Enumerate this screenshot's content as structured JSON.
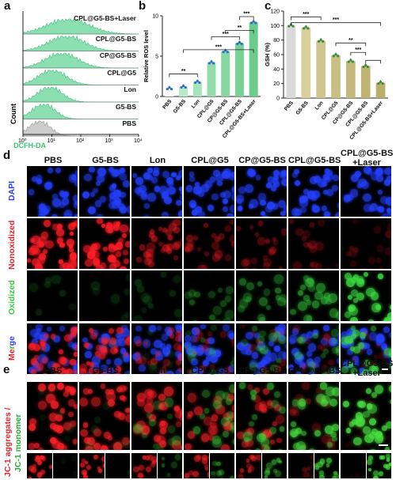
{
  "panels": {
    "a": "a",
    "b": "b",
    "c": "c",
    "d": "d",
    "e": "e"
  },
  "panel_a": {
    "xlabel": "DCFH-DA",
    "ylabel": "Count",
    "xticks": [
      "10⁰",
      "10¹",
      "10²",
      "10³",
      "10⁴"
    ],
    "groups": [
      "CPL@G5-BS+Laser",
      "CPL@G5-BS",
      "CP@G5-BS",
      "CPL@G5",
      "Lon",
      "G5-BS",
      "PBS"
    ]
  },
  "chart_data": [
    {
      "type": "bar",
      "title": "",
      "ylabel": "Relative ROS level",
      "xlabel": "",
      "categories": [
        "PBS",
        "G5-BS",
        "Lon",
        "CPL@G5",
        "CP@G5-BS",
        "CPL@G5-BS",
        "CPL@G5-BS+Laser"
      ],
      "values": [
        1.0,
        1.2,
        1.8,
        4.2,
        5.6,
        6.6,
        9.2
      ],
      "ylim": [
        0,
        10
      ],
      "yticks": [
        0,
        5,
        10
      ],
      "significance": [
        "**",
        "***",
        "***",
        "**",
        "***"
      ]
    },
    {
      "type": "bar",
      "title": "",
      "ylabel": "GSH (%)",
      "xlabel": "",
      "categories": [
        "PBS",
        "G5-BS",
        "Lon",
        "CPL@G5",
        "CP@G5-BS",
        "CPL@G5-BS",
        "CPL@G5-BS+Laser"
      ],
      "values": [
        100,
        97,
        79,
        59,
        51,
        44,
        21
      ],
      "ylim": [
        0,
        120
      ],
      "yticks": [
        0,
        20,
        40,
        60,
        80,
        100,
        120
      ],
      "significance": [
        "***",
        "***",
        "**",
        "***"
      ]
    }
  ],
  "panel_d": {
    "columns": [
      "PBS",
      "G5-BS",
      "Lon",
      "CPL@G5",
      "CP@G5-BS",
      "CPL@G5-BS",
      "CPL@G5-BS\n+Laser"
    ],
    "rows": [
      "DAPI",
      "Nonoxidized",
      "Oxidized",
      "Merge"
    ]
  },
  "panel_e": {
    "columns": [
      "PBS",
      "G5-BS",
      "Lon",
      "CPL@G5",
      "CP@G5-BS",
      "CPL@G5-BS",
      "CPL@G5-BS\n+Laser"
    ],
    "row_label_red": "JC-1 aggregates /",
    "row_label_green": "JC-1 monomer"
  },
  "colors": {
    "hist_fill": "#7fdca8",
    "hist_gray": "#c8c8c8",
    "bar_b": "#8fdaa8",
    "bar_c": "#d6cc9a",
    "dapi": "#2a3bff",
    "red": "#e8202a",
    "green": "#36d13a"
  }
}
